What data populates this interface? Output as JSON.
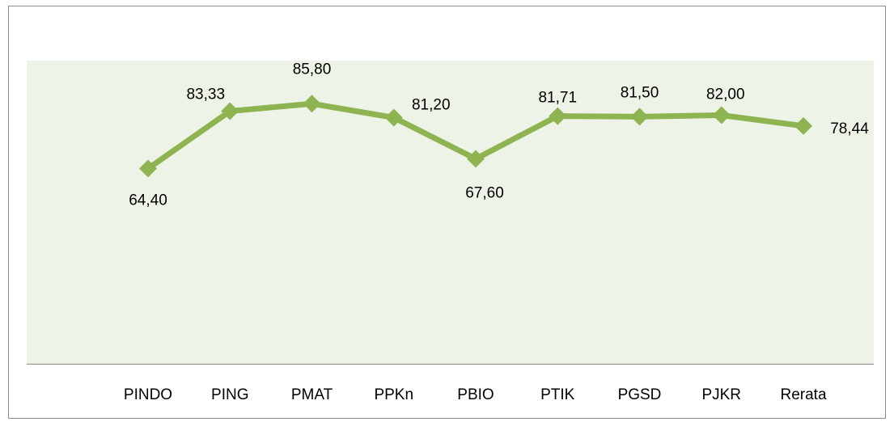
{
  "chart_data": {
    "type": "line",
    "categories": [
      "PINDO",
      "PING",
      "PMAT",
      "PPKn",
      "PBIO",
      "PTIK",
      "PGSD",
      "PJKR",
      "Rerata"
    ],
    "values": [
      64.4,
      83.33,
      85.8,
      81.2,
      67.6,
      81.71,
      81.5,
      82.0,
      78.44
    ],
    "value_labels": [
      "64,40",
      "83,33",
      "85,80",
      "81,20",
      "67,60",
      "81,71",
      "81,50",
      "82,00",
      "78,44"
    ],
    "color": "#8eb452",
    "ylim": [
      0,
      100
    ]
  }
}
